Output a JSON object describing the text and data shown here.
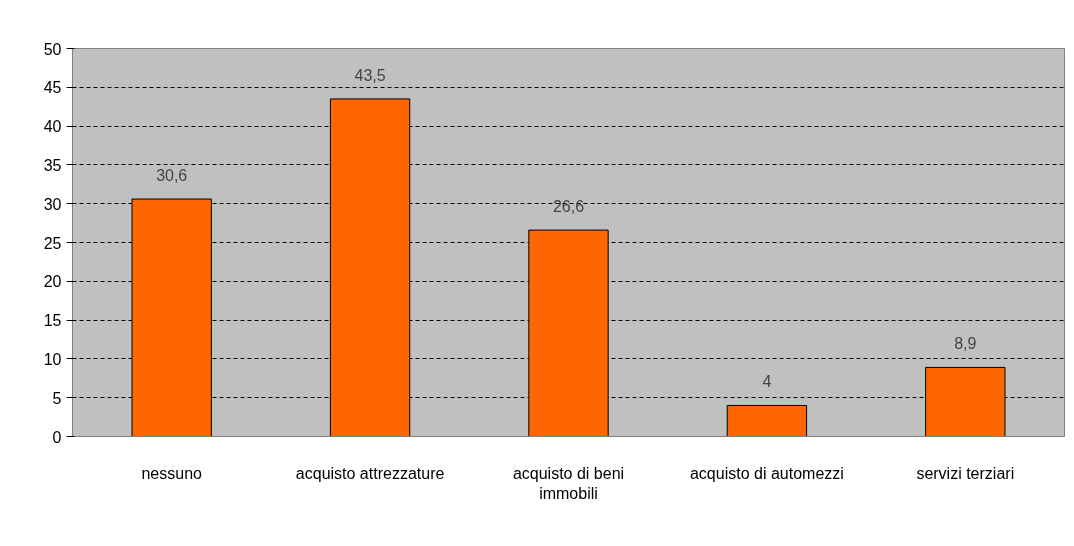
{
  "chart_data": {
    "type": "bar",
    "categories": [
      "nessuno",
      "acquisto attrezzature",
      "acquisto di beni immobili",
      "acquisto di automezzi",
      "servizi terziari"
    ],
    "values": [
      30.6,
      43.5,
      26.6,
      4,
      8.9
    ],
    "value_labels": [
      "30,6",
      "43,5",
      "26,6",
      "4",
      "8,9"
    ],
    "color": "#ff6600",
    "ylim": [
      0,
      50
    ],
    "yticks": [
      0,
      5,
      10,
      15,
      20,
      25,
      30,
      35,
      40,
      45,
      50
    ],
    "grid": "y"
  }
}
